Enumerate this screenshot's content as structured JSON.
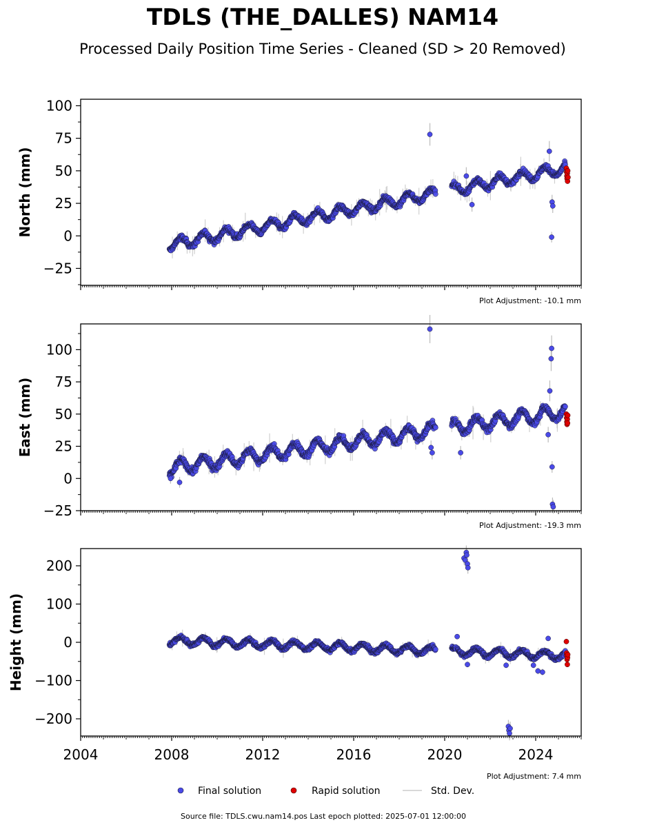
{
  "title": "TDLS (THE_DALLES) NAM14",
  "subtitle": "Processed Daily Position Time Series - Cleaned (SD > 20 Removed)",
  "footer": "Source file: TDLS.cwu.nam14.pos  Last epoch plotted: 2025-07-01 12:00:00",
  "legend": {
    "final": "Final solution",
    "rapid": "Rapid solution",
    "std": "Std. Dev."
  },
  "colors": {
    "final": "#4a4ae8",
    "rapid": "#e00000",
    "std": "#bbbbbb",
    "marker_edge": "#1a1a3a"
  },
  "chart_data": [
    {
      "type": "scatter",
      "ylabel": "North (mm)",
      "adjustment": "Plot Adjustment: -10.1 mm",
      "xlim": [
        2004,
        2026
      ],
      "ylim": [
        -38,
        105
      ],
      "yticks": [
        -25,
        0,
        25,
        50,
        75,
        100
      ],
      "ytick_labels": [
        "−25",
        "0",
        "25",
        "50",
        "75",
        "100"
      ],
      "xticks": [
        2004,
        2008,
        2012,
        2016,
        2020,
        2024
      ],
      "xtick_labels": [],
      "grid": false,
      "legend_position": "bottom-center",
      "series": [
        {
          "name": "Final solution",
          "kind": "final",
          "trend": {
            "t0": 2007.9,
            "t1": 2025.3,
            "y0": -7,
            "y1": 52
          },
          "seasonal_amplitude": 4,
          "gaps": [
            [
              2019.6,
              2020.3
            ],
            [
              2020.5,
              2020.55
            ]
          ],
          "outliers": [
            [
              2019.35,
              78
            ],
            [
              2024.6,
              65
            ],
            [
              2024.72,
              26
            ],
            [
              2024.75,
              23
            ],
            [
              2024.7,
              -1
            ],
            [
              2020.95,
              46
            ],
            [
              2021.2,
              24
            ]
          ]
        },
        {
          "name": "Rapid solution",
          "kind": "rapid",
          "x": [
            2025.35,
            2025.36,
            2025.37,
            2025.38,
            2025.39,
            2025.4,
            2025.41,
            2025.42
          ],
          "y": [
            52,
            49,
            46,
            44,
            48,
            42,
            50,
            45
          ]
        }
      ]
    },
    {
      "type": "scatter",
      "ylabel": "East (mm)",
      "adjustment": "Plot Adjustment: -19.3 mm",
      "xlim": [
        2004,
        2026
      ],
      "ylim": [
        -25,
        120
      ],
      "yticks": [
        -25,
        0,
        25,
        50,
        75,
        100
      ],
      "ytick_labels": [
        "−25",
        "0",
        "25",
        "50",
        "75",
        "100"
      ],
      "xticks": [
        2004,
        2008,
        2012,
        2016,
        2020,
        2024
      ],
      "xtick_labels": [],
      "grid": false,
      "series": [
        {
          "name": "Final solution",
          "kind": "final",
          "trend": {
            "t0": 2007.9,
            "t1": 2025.3,
            "y0": 8,
            "y1": 52
          },
          "seasonal_amplitude": 5,
          "gaps": [
            [
              2019.6,
              2020.3
            ],
            [
              2020.5,
              2020.55
            ]
          ],
          "outliers": [
            [
              2019.35,
              116
            ],
            [
              2007.95,
              0
            ],
            [
              2008.35,
              -3
            ],
            [
              2024.62,
              68
            ],
            [
              2024.7,
              101
            ],
            [
              2024.68,
              93
            ],
            [
              2024.72,
              9
            ],
            [
              2024.74,
              -20
            ],
            [
              2024.77,
              -22
            ],
            [
              2020.7,
              20
            ],
            [
              2019.45,
              20
            ],
            [
              2019.4,
              24
            ],
            [
              2024.55,
              34
            ]
          ]
        },
        {
          "name": "Rapid solution",
          "kind": "rapid",
          "x": [
            2025.35,
            2025.36,
            2025.37,
            2025.38,
            2025.39,
            2025.4,
            2025.41
          ],
          "y": [
            50,
            47,
            44,
            42,
            46,
            43,
            49
          ]
        }
      ]
    },
    {
      "type": "scatter",
      "ylabel": "Height (mm)",
      "adjustment": "Plot Adjustment: 7.4 mm",
      "xlim": [
        2004,
        2026
      ],
      "ylim": [
        -245,
        245
      ],
      "yticks": [
        -200,
        -100,
        0,
        100,
        200
      ],
      "ytick_labels": [
        "−200",
        "−100",
        "0",
        "100",
        "200"
      ],
      "xticks": [
        2004,
        2008,
        2012,
        2016,
        2020,
        2024
      ],
      "xtick_labels": [
        "2004",
        "2008",
        "2012",
        "2016",
        "2020",
        "2024"
      ],
      "grid": false,
      "series": [
        {
          "name": "Final solution",
          "kind": "final",
          "trend": {
            "t0": 2007.9,
            "t1": 2025.3,
            "y0": 5,
            "y1": -35
          },
          "seasonal_amplitude": 10,
          "gaps": [
            [
              2019.6,
              2020.3
            ],
            [
              2020.5,
              2020.55
            ]
          ],
          "outliers": [
            [
              2020.85,
              220
            ],
            [
              2020.9,
              215
            ],
            [
              2020.95,
              235
            ],
            [
              2020.97,
              228
            ],
            [
              2021.0,
              205
            ],
            [
              2021.02,
              195
            ],
            [
              2022.8,
              -220
            ],
            [
              2022.82,
              -230
            ],
            [
              2022.85,
              -238
            ],
            [
              2022.88,
              -225
            ],
            [
              2020.55,
              15
            ],
            [
              2024.55,
              10
            ],
            [
              2024.1,
              -75
            ],
            [
              2024.3,
              -78
            ],
            [
              2023.9,
              -60
            ],
            [
              2022.7,
              -60
            ],
            [
              2021.0,
              -58
            ]
          ]
        },
        {
          "name": "Rapid solution",
          "kind": "rapid",
          "x": [
            2025.35,
            2025.36,
            2025.37,
            2025.38,
            2025.39,
            2025.4,
            2025.41
          ],
          "y": [
            2,
            -28,
            -35,
            -45,
            -58,
            -40,
            -32
          ]
        }
      ]
    }
  ]
}
